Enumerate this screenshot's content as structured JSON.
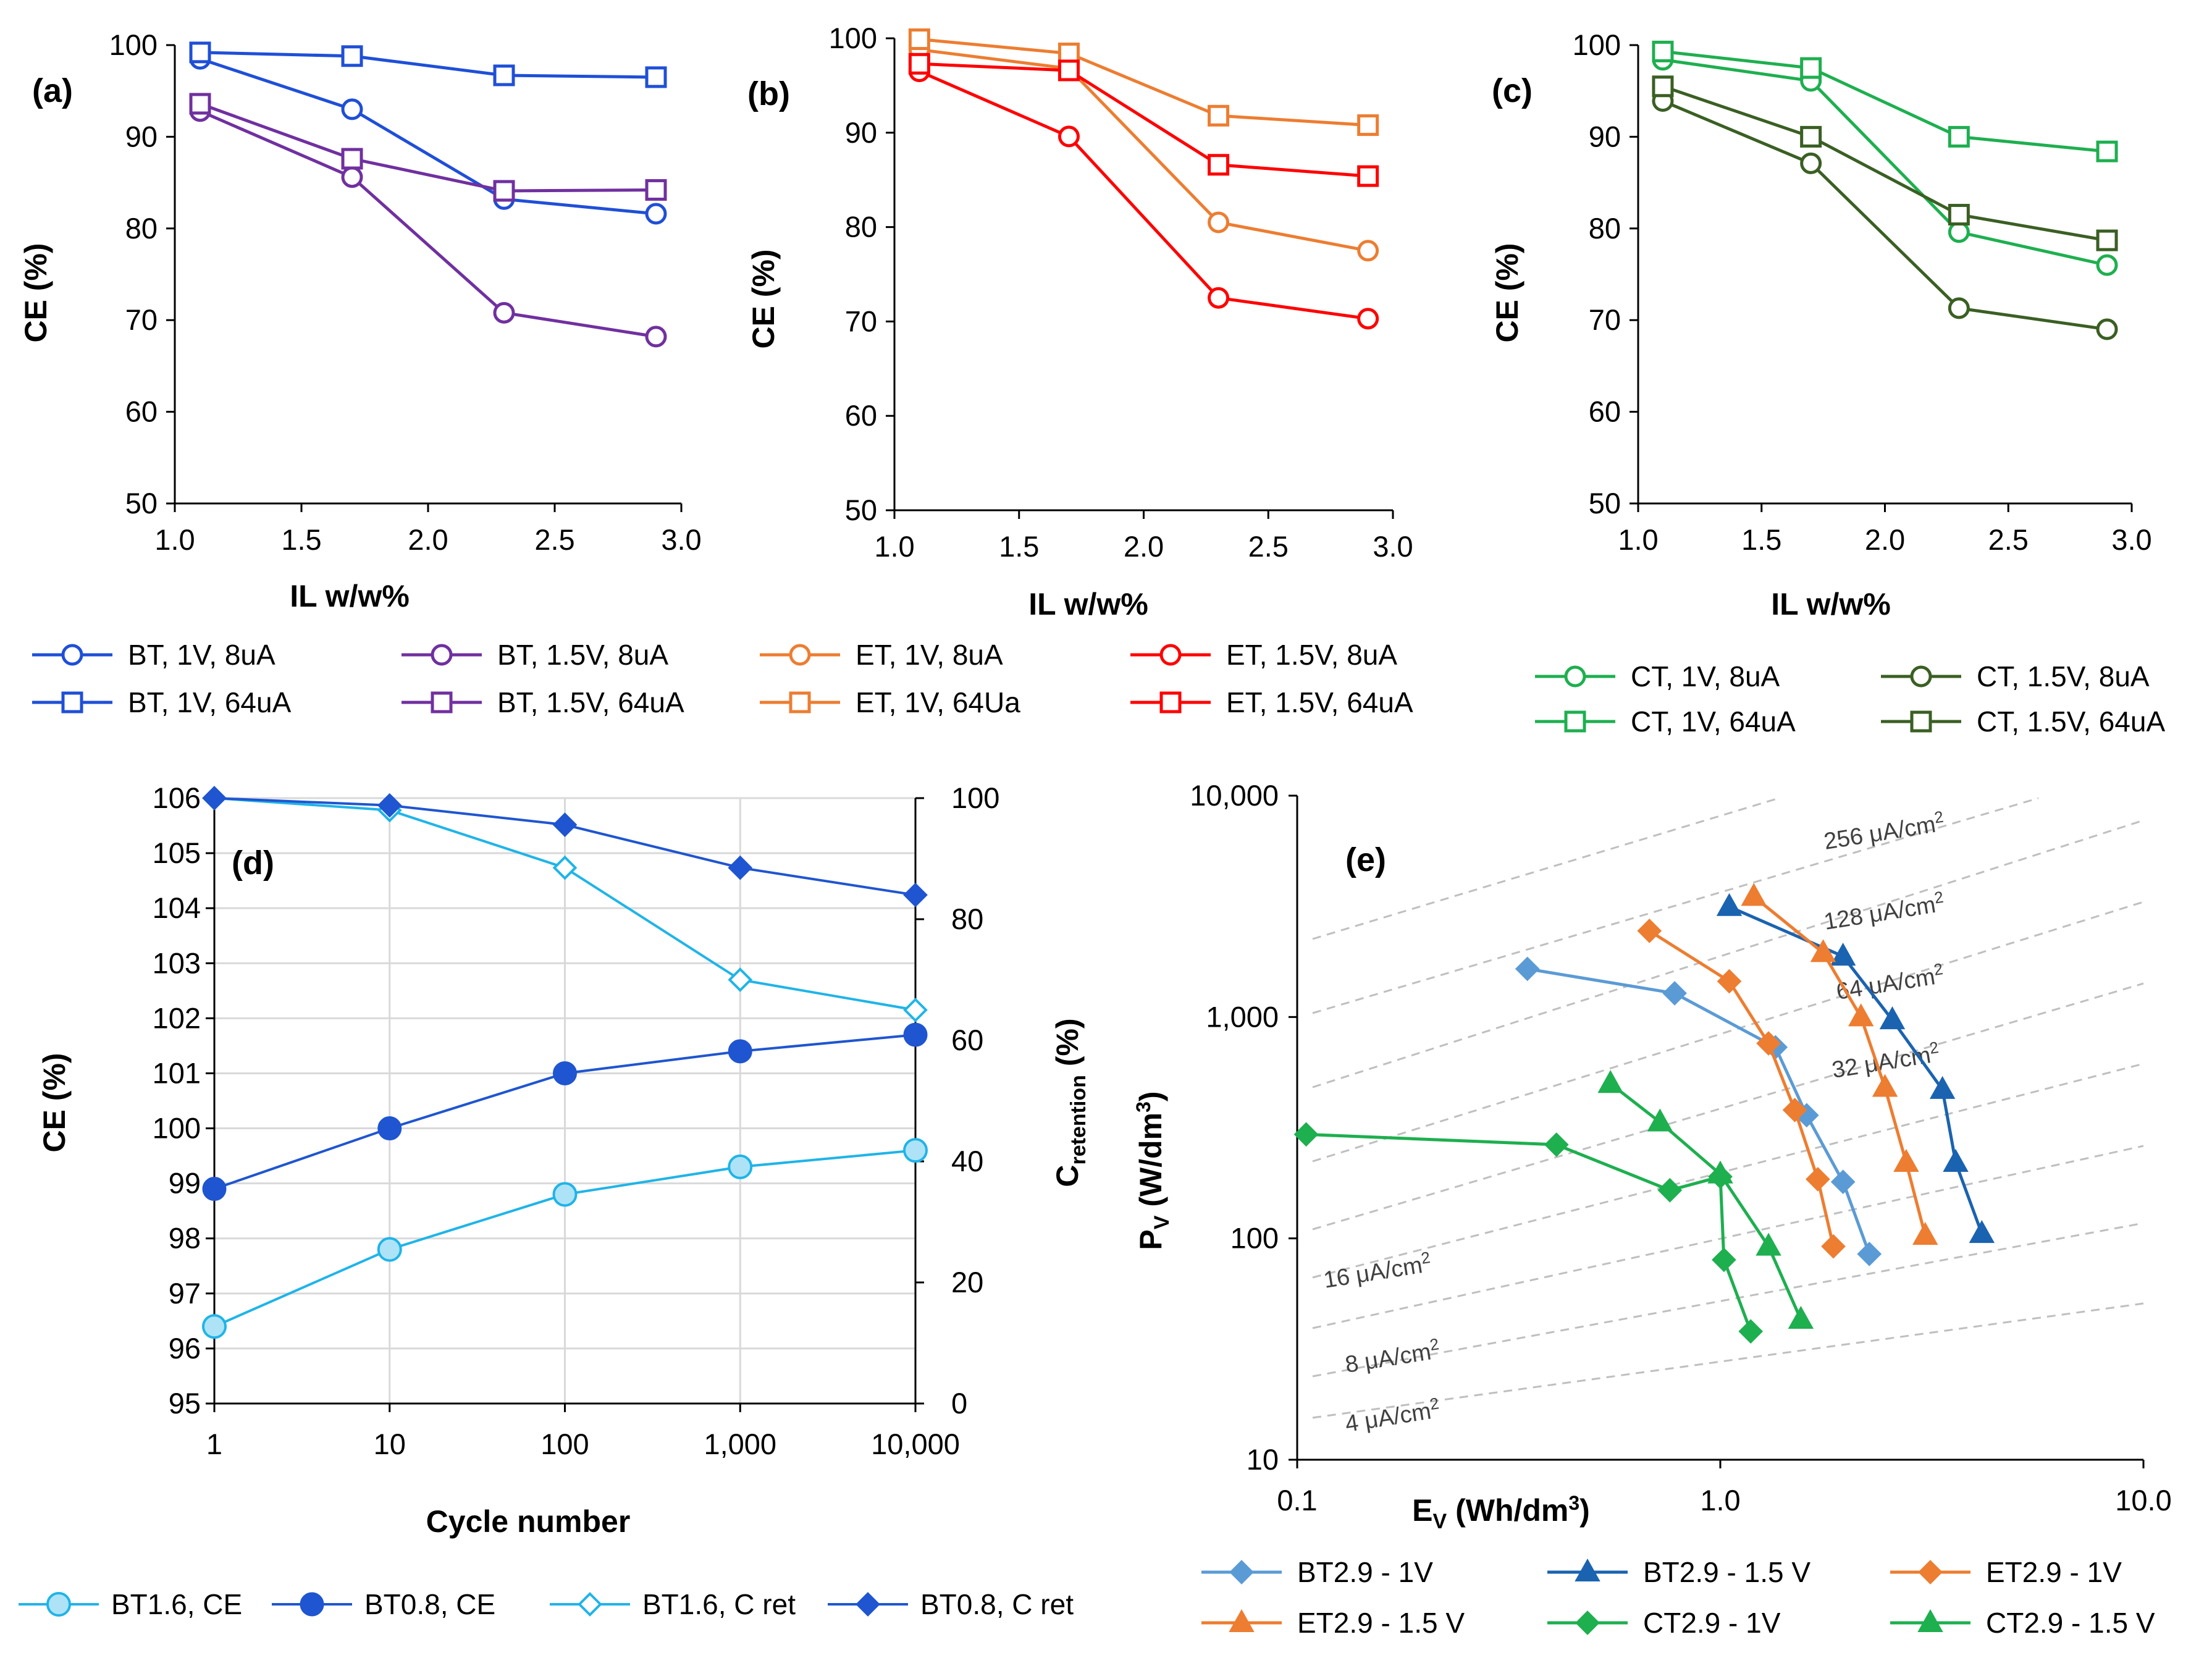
{
  "panels_ace": [
    {
      "label": "(a)",
      "ylabel": "CE (%)",
      "xlabel": "IL w/w%",
      "xlim": [
        1.0,
        3.0
      ],
      "ylim": [
        50,
        100
      ],
      "xticks": [
        "1.0",
        "1.5",
        "2.0",
        "2.5",
        "3.0"
      ],
      "yticks": [
        "50",
        "60",
        "70",
        "80",
        "90",
        "100"
      ],
      "series": [
        {
          "name": "BT, 1V, 8uA",
          "color": "#1f4fd8",
          "marker": "circle",
          "x": [
            1.1,
            1.7,
            2.3,
            2.9
          ],
          "y": [
            98.5,
            93.0,
            83.2,
            81.6
          ]
        },
        {
          "name": "BT, 1.5V, 8uA",
          "color": "#7030a0",
          "marker": "circle",
          "x": [
            1.1,
            1.7,
            2.3,
            2.9
          ],
          "y": [
            92.8,
            85.6,
            70.8,
            68.2
          ]
        },
        {
          "name": "BT, 1V, 64uA",
          "color": "#1f4fd8",
          "marker": "square",
          "x": [
            1.1,
            1.7,
            2.3,
            2.9
          ],
          "y": [
            99.2,
            98.8,
            96.7,
            96.5
          ]
        },
        {
          "name": "BT, 1.5V, 64uA",
          "color": "#7030a0",
          "marker": "square",
          "x": [
            1.1,
            1.7,
            2.3,
            2.9
          ],
          "y": [
            93.6,
            87.6,
            84.1,
            84.2
          ]
        }
      ]
    },
    {
      "label": "(b)",
      "ylabel": "CE (%)",
      "xlabel": "IL w/w%",
      "xlim": [
        1.0,
        3.0
      ],
      "ylim": [
        50,
        100
      ],
      "xticks": [
        "1.0",
        "1.5",
        "2.0",
        "2.5",
        "3.0"
      ],
      "yticks": [
        "50",
        "60",
        "70",
        "80",
        "90",
        "100"
      ],
      "series": [
        {
          "name": "ET, 1V, 8uA",
          "color": "#ed7d31",
          "marker": "circle",
          "x": [
            1.1,
            1.7,
            2.3,
            2.9
          ],
          "y": [
            98.8,
            96.8,
            80.5,
            77.5
          ]
        },
        {
          "name": "ET, 1.5V, 8uA",
          "color": "#ff0000",
          "marker": "circle",
          "x": [
            1.1,
            1.7,
            2.3,
            2.9
          ],
          "y": [
            96.5,
            89.6,
            72.5,
            70.3
          ]
        },
        {
          "name": "ET, 1V, 64Ua",
          "color": "#ed7d31",
          "marker": "square",
          "x": [
            1.1,
            1.7,
            2.3,
            2.9
          ],
          "y": [
            99.9,
            98.4,
            91.8,
            90.8
          ]
        },
        {
          "name": "ET, 1.5V, 64uA",
          "color": "#ff0000",
          "marker": "square",
          "x": [
            1.1,
            1.7,
            2.3,
            2.9
          ],
          "y": [
            97.3,
            96.6,
            86.6,
            85.4
          ]
        }
      ]
    },
    {
      "label": "(c)",
      "ylabel": "CE (%)",
      "xlabel": "IL w/w%",
      "xlim": [
        1.0,
        3.0
      ],
      "ylim": [
        50,
        100
      ],
      "xticks": [
        "1.0",
        "1.5",
        "2.0",
        "2.5",
        "3.0"
      ],
      "yticks": [
        "50",
        "60",
        "70",
        "80",
        "90",
        "100"
      ],
      "series": [
        {
          "name": "CT, 1V, 8uA",
          "color": "#1eaf4f",
          "marker": "circle",
          "x": [
            1.1,
            1.7,
            2.3,
            2.9
          ],
          "y": [
            98.4,
            96.1,
            79.6,
            76.0
          ]
        },
        {
          "name": "CT, 1.5V, 8uA",
          "color": "#3a5f23",
          "marker": "circle",
          "x": [
            1.1,
            1.7,
            2.3,
            2.9
          ],
          "y": [
            93.9,
            87.1,
            71.3,
            69.0
          ]
        },
        {
          "name": "CT, 1V, 64uA",
          "color": "#1eaf4f",
          "marker": "square",
          "x": [
            1.1,
            1.7,
            2.3,
            2.9
          ],
          "y": [
            99.3,
            97.5,
            90.0,
            88.4
          ]
        },
        {
          "name": "CT, 1.5V, 64uA",
          "color": "#3a5f23",
          "marker": "square",
          "x": [
            1.1,
            1.7,
            2.3,
            2.9
          ],
          "y": [
            95.5,
            90.0,
            81.5,
            78.7
          ]
        }
      ]
    }
  ],
  "panel_d": {
    "label": "(d)",
    "ylabel_left": "CE (%)",
    "ylabel_right_main": "C",
    "ylabel_right_sub": "retention",
    "ylabel_right_tail": " (%)",
    "xlabel": "Cycle number",
    "xticks": [
      "1",
      "10",
      "100",
      "1,000",
      "10,000"
    ],
    "yticks_left": [
      "95",
      "96",
      "97",
      "98",
      "99",
      "100",
      "101",
      "102",
      "103",
      "104",
      "105",
      "106"
    ],
    "yticks_right": [
      "0",
      "20",
      "40",
      "60",
      "80",
      "100"
    ],
    "ylim_left": [
      95,
      106
    ],
    "ylim_right": [
      0,
      100
    ],
    "series": [
      {
        "name": "BT1.6, CE",
        "axis": "left",
        "color": "#1fb4e8",
        "marker": "circle-light",
        "x": [
          1,
          10,
          100,
          1000,
          10000
        ],
        "y": [
          96.4,
          97.8,
          98.8,
          99.3,
          99.6
        ]
      },
      {
        "name": "BT0.8, CE",
        "axis": "left",
        "color": "#1f55d0",
        "marker": "circle-filled",
        "x": [
          1,
          10,
          100,
          1000,
          10000
        ],
        "y": [
          98.9,
          100.0,
          101.0,
          101.4,
          101.7
        ]
      },
      {
        "name": "BT1.6, C ret",
        "axis": "right",
        "color": "#1fb4e8",
        "marker": "diamond-open",
        "x": [
          1,
          10,
          100,
          1000,
          10000
        ],
        "y": [
          100,
          98,
          88.5,
          70,
          65
        ]
      },
      {
        "name": "BT0.8, C ret",
        "axis": "right",
        "color": "#1f55d0",
        "marker": "diamond-filled",
        "x": [
          1,
          10,
          100,
          1000,
          10000
        ],
        "y": [
          100,
          98.8,
          95.6,
          88.5,
          84
        ]
      }
    ]
  },
  "panel_e": {
    "label": "(e)",
    "xlabel_main": "E",
    "xlabel_sub": "V",
    "xlabel_tail": " (Wh/dm",
    "xlabel_sup": "3",
    "xlabel_end": ")",
    "ylabel_main": "P",
    "ylabel_sub": "V",
    "ylabel_tail": " (W/dm",
    "ylabel_sup": "3",
    "ylabel_end": ")",
    "xticks": [
      "0.1",
      "1.0",
      "10.0"
    ],
    "yticks": [
      "10",
      "100",
      "1,000",
      "10,000"
    ],
    "xlim": [
      0.1,
      10
    ],
    "ylim": [
      10,
      10000
    ],
    "bands": [
      {
        "label": "4 μA/cm",
        "sup": "2"
      },
      {
        "label": "8 μA/cm",
        "sup": "2"
      },
      {
        "label": "16 μA/cm",
        "sup": "2"
      },
      {
        "label": "32 μA/cm",
        "sup": "2"
      },
      {
        "label": "64 μA/cm",
        "sup": "2"
      },
      {
        "label": "128 μA/cm",
        "sup": "2"
      },
      {
        "label": "256 μA/cm",
        "sup": "2"
      }
    ],
    "series": [
      {
        "name": "BT2.9 - 1V",
        "color": "#5b9bd5",
        "marker": "diamond",
        "x": [
          0.35,
          0.78,
          1.35,
          1.6,
          1.95,
          2.25
        ],
        "y": [
          1650,
          1280,
          730,
          360,
          180,
          85
        ]
      },
      {
        "name": "BT2.9 - 1.5 V",
        "color": "#1a63b0",
        "marker": "triangle",
        "x": [
          1.05,
          1.95,
          2.55,
          3.35,
          3.6,
          4.15
        ],
        "y": [
          3150,
          1880,
          970,
          470,
          220,
          105
        ]
      },
      {
        "name": "ET2.9 - 1V",
        "color": "#ed7d31",
        "marker": "diamond",
        "x": [
          0.68,
          1.05,
          1.3,
          1.5,
          1.7,
          1.85
        ],
        "y": [
          2450,
          1450,
          760,
          380,
          185,
          92
        ]
      },
      {
        "name": "ET2.9 - 1.5 V",
        "color": "#ed7d31",
        "marker": "triangle",
        "x": [
          1.2,
          1.75,
          2.15,
          2.45,
          2.75,
          3.05
        ],
        "y": [
          3500,
          1950,
          1000,
          480,
          220,
          103
        ]
      },
      {
        "name": "CT2.9 - 1V",
        "color": "#1eaf4f",
        "marker": "diamond",
        "x": [
          0.105,
          0.41,
          0.76,
          1.0,
          1.02,
          1.18
        ],
        "y": [
          295,
          265,
          165,
          190,
          80,
          38
        ]
      },
      {
        "name": "CT2.9 - 1.5 V",
        "color": "#1eaf4f",
        "marker": "triangle",
        "x": [
          0.55,
          0.72,
          1.0,
          1.3,
          1.55
        ],
        "y": [
          500,
          335,
          195,
          92,
          43
        ]
      }
    ]
  }
}
